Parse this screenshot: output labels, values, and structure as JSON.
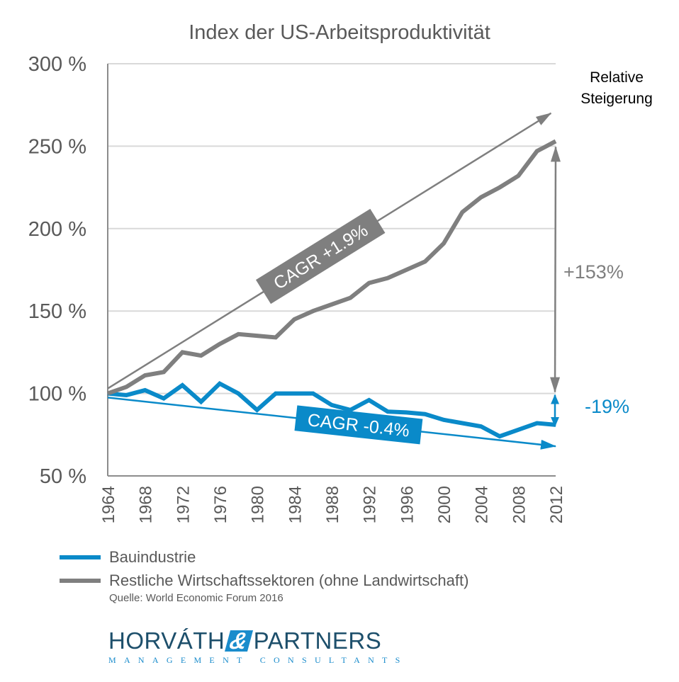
{
  "chart_data": {
    "type": "line",
    "title": "Index der US-Arbeitsproduktivität",
    "xlabel": "",
    "ylabel": "",
    "ylim": [
      50,
      300
    ],
    "xlim": [
      1964,
      2012
    ],
    "y_ticks": [
      {
        "value": 300,
        "label": "300 %"
      },
      {
        "value": 250,
        "label": "250 %"
      },
      {
        "value": 200,
        "label": "200 %"
      },
      {
        "value": 150,
        "label": "150 %"
      },
      {
        "value": 100,
        "label": "100 %"
      },
      {
        "value": 50,
        "label": "50 %"
      }
    ],
    "x_ticks": [
      "1964",
      "1968",
      "1972",
      "1976",
      "1980",
      "1984",
      "1988",
      "1992",
      "1996",
      "2000",
      "2004",
      "2008",
      "2012"
    ],
    "grid": "horizontal",
    "x": [
      1964,
      1966,
      1968,
      1970,
      1972,
      1974,
      1976,
      1978,
      1980,
      1982,
      1984,
      1986,
      1988,
      1990,
      1992,
      1994,
      1996,
      1998,
      2000,
      2002,
      2004,
      2006,
      2008,
      2010,
      2012
    ],
    "series": [
      {
        "name": "Bauindustrie",
        "color": "#0a8ac9",
        "values": [
          100,
          99,
          102,
          97,
          105,
          95,
          106,
          100,
          90,
          100,
          100,
          100,
          93,
          90,
          96,
          89,
          88.5,
          87.5,
          84,
          82,
          80,
          74,
          78,
          82,
          81
        ]
      },
      {
        "name": "Restliche Wirtschaftssektoren (ohne Landwirtschaft)",
        "color": "#7f7f7f",
        "values": [
          100,
          104,
          111,
          113,
          125,
          123,
          130,
          136,
          135,
          134,
          145,
          150,
          154,
          158,
          167,
          170,
          175,
          180,
          191,
          210,
          219,
          225,
          232,
          247,
          253
        ]
      }
    ],
    "trend_lines": [
      {
        "name": "gray-trend",
        "label": "CAGR +1.9%",
        "color": "#7f7f7f",
        "from": [
          1964,
          103
        ],
        "to": [
          2011.5,
          270
        ]
      },
      {
        "name": "blue-trend",
        "label": "CAGR -0.4%",
        "color": "#0a8ac9",
        "from": [
          1964,
          97.5
        ],
        "to": [
          2012,
          68
        ]
      }
    ],
    "annotations": [
      {
        "name": "relative-increase-gray",
        "label": "+153%",
        "color": "#7f7f7f",
        "from": 100,
        "to": 253,
        "x": 2012
      },
      {
        "name": "relative-increase-blue",
        "label": "-19%",
        "color": "#0a8ac9",
        "from": 100,
        "to": 81,
        "x": 2012
      }
    ],
    "side_label": [
      "Relative",
      "Steigerung"
    ],
    "legend_placement": "bottom-left",
    "source": "Quelle: World Economic Forum 2016"
  },
  "logo": {
    "name_part1": "HORVÁTH",
    "ampersand": "&",
    "name_part2": "PARTNERS",
    "tagline": "MANAGEMENT CONSULTANTS"
  }
}
